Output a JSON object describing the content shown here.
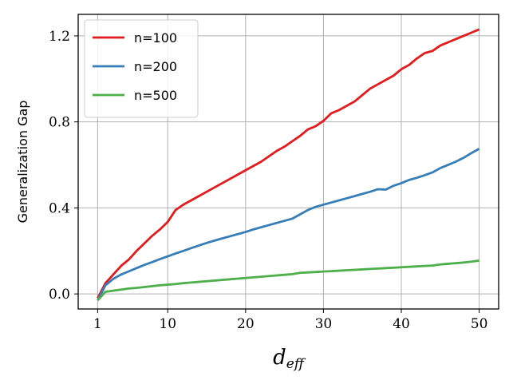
{
  "chart_data": {
    "type": "line",
    "ylabel": "Generalization Gap",
    "xlabel": {
      "main": "d",
      "sub": "eff"
    },
    "xlim": [
      -1.5,
      52.5
    ],
    "ylim": [
      -0.07,
      1.3
    ],
    "xticks": [
      1,
      10,
      20,
      30,
      40,
      50
    ],
    "yticks": [
      0.0,
      0.4,
      0.8,
      1.2
    ],
    "xtick_labels": [
      "1",
      "10",
      "20",
      "30",
      "40",
      "50"
    ],
    "ytick_labels": [
      "0.0",
      "0.4",
      "0.8",
      "1.2"
    ],
    "grid": true,
    "legend_position": "top-left",
    "series": [
      {
        "name": "n=100",
        "color": "#e41a1c",
        "x": [
          1,
          2,
          3,
          4,
          5,
          6,
          7,
          8,
          9,
          10,
          11,
          12,
          13,
          14,
          15,
          16,
          17,
          18,
          19,
          20,
          21,
          22,
          23,
          24,
          25,
          26,
          27,
          28,
          29,
          30,
          31,
          32,
          33,
          34,
          35,
          36,
          37,
          38,
          39,
          40,
          41,
          42,
          43,
          44,
          45,
          46,
          47,
          48,
          49,
          50
        ],
        "values": [
          -0.02,
          0.05,
          0.09,
          0.13,
          0.16,
          0.2,
          0.235,
          0.27,
          0.3,
          0.335,
          0.39,
          0.415,
          0.435,
          0.455,
          0.475,
          0.495,
          0.515,
          0.535,
          0.555,
          0.575,
          0.595,
          0.615,
          0.64,
          0.665,
          0.685,
          0.71,
          0.735,
          0.765,
          0.78,
          0.805,
          0.84,
          0.855,
          0.875,
          0.895,
          0.925,
          0.955,
          0.975,
          0.995,
          1.015,
          1.045,
          1.065,
          1.095,
          1.12,
          1.13,
          1.155,
          1.17,
          1.185,
          1.2,
          1.215,
          1.23
        ]
      },
      {
        "name": "n=200",
        "color": "#377eb8",
        "x": [
          1,
          2,
          3,
          4,
          5,
          6,
          7,
          8,
          9,
          10,
          11,
          12,
          13,
          14,
          15,
          16,
          17,
          18,
          19,
          20,
          21,
          22,
          23,
          24,
          25,
          26,
          27,
          28,
          29,
          30,
          31,
          32,
          33,
          34,
          35,
          36,
          37,
          38,
          39,
          40,
          41,
          42,
          43,
          44,
          45,
          46,
          47,
          48,
          49,
          50
        ],
        "values": [
          -0.03,
          0.04,
          0.07,
          0.09,
          0.105,
          0.12,
          0.135,
          0.148,
          0.162,
          0.175,
          0.188,
          0.2,
          0.213,
          0.225,
          0.237,
          0.248,
          0.258,
          0.268,
          0.278,
          0.288,
          0.3,
          0.31,
          0.32,
          0.33,
          0.34,
          0.35,
          0.37,
          0.39,
          0.405,
          0.415,
          0.425,
          0.435,
          0.445,
          0.455,
          0.465,
          0.475,
          0.487,
          0.485,
          0.503,
          0.515,
          0.53,
          0.54,
          0.552,
          0.565,
          0.585,
          0.6,
          0.615,
          0.633,
          0.655,
          0.675
        ]
      },
      {
        "name": "n=500",
        "color": "#4daf4a",
        "x": [
          1,
          2,
          3,
          4,
          5,
          6,
          7,
          8,
          9,
          10,
          11,
          12,
          13,
          14,
          15,
          16,
          17,
          18,
          19,
          20,
          21,
          22,
          23,
          24,
          25,
          26,
          27,
          28,
          29,
          30,
          31,
          32,
          33,
          34,
          35,
          36,
          37,
          38,
          39,
          40,
          41,
          42,
          43,
          44,
          45,
          46,
          47,
          48,
          49,
          50
        ],
        "values": [
          -0.03,
          0.01,
          0.015,
          0.02,
          0.025,
          0.028,
          0.032,
          0.036,
          0.04,
          0.043,
          0.046,
          0.05,
          0.053,
          0.056,
          0.059,
          0.062,
          0.065,
          0.068,
          0.071,
          0.074,
          0.077,
          0.08,
          0.083,
          0.086,
          0.089,
          0.092,
          0.098,
          0.1,
          0.102,
          0.104,
          0.106,
          0.108,
          0.11,
          0.112,
          0.114,
          0.116,
          0.118,
          0.12,
          0.122,
          0.124,
          0.126,
          0.128,
          0.13,
          0.132,
          0.137,
          0.14,
          0.143,
          0.146,
          0.15,
          0.155
        ]
      }
    ]
  }
}
